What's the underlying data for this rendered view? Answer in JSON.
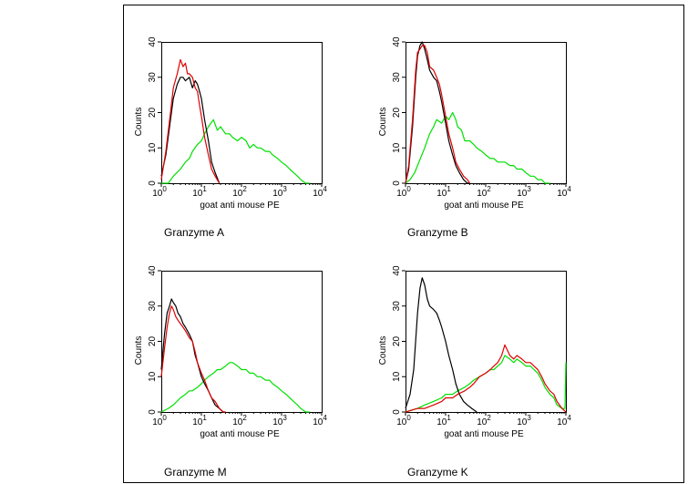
{
  "colors": {
    "black": "#000000",
    "red": "#e00000",
    "green": "#00e000"
  },
  "chart_data": [
    {
      "type": "line",
      "caption": "Granzyme A",
      "xlabel": "goat anti mouse PE",
      "ylabel": "Counts",
      "xscale": "log",
      "xlim": [
        1,
        10000
      ],
      "ylim": [
        0,
        40
      ],
      "xticks": [
        {
          "b": "10",
          "e": "0"
        },
        {
          "b": "10",
          "e": "1"
        },
        {
          "b": "10",
          "e": "2"
        },
        {
          "b": "10",
          "e": "3"
        },
        {
          "b": "10",
          "e": "4"
        }
      ],
      "yticks": [
        "0",
        "10",
        "20",
        "30",
        "40"
      ],
      "series": [
        {
          "color": "black",
          "x": [
            1,
            1.3,
            1.7,
            2,
            2.5,
            3,
            3.5,
            4,
            5,
            6,
            7,
            8,
            9,
            10,
            12,
            15,
            18,
            22,
            28
          ],
          "y": [
            2,
            8,
            18,
            24,
            28,
            30,
            30,
            29,
            30,
            27,
            29,
            28,
            26,
            24,
            18,
            12,
            6,
            3,
            0
          ]
        },
        {
          "color": "red",
          "x": [
            1,
            1.3,
            1.7,
            2,
            2.5,
            3,
            3.5,
            4,
            4.5,
            5,
            6,
            7,
            8,
            9,
            10,
            12,
            15,
            18,
            22,
            28
          ],
          "y": [
            1,
            9,
            20,
            27,
            31,
            35,
            33,
            34,
            31,
            31,
            30,
            27,
            26,
            22,
            19,
            13,
            8,
            4,
            2,
            0
          ]
        },
        {
          "color": "green",
          "x": [
            1,
            1.5,
            2,
            3,
            4,
            5,
            6,
            8,
            10,
            12,
            15,
            20,
            25,
            30,
            40,
            50,
            60,
            80,
            100,
            130,
            160,
            200,
            250,
            300,
            400,
            500,
            600,
            800,
            1000,
            1300,
            1600,
            2000,
            2500,
            3000,
            4000,
            5000
          ],
          "y": [
            0,
            0,
            2,
            4,
            6,
            7,
            9,
            11,
            12,
            14,
            16,
            18,
            15,
            16,
            14,
            14,
            13,
            12,
            13,
            12,
            10,
            11,
            10,
            10,
            9,
            9,
            8,
            7,
            6,
            5,
            4,
            3,
            2,
            1,
            0,
            0
          ]
        }
      ]
    },
    {
      "type": "line",
      "caption": "Granzyme B",
      "xlabel": "goat anti mouse PE",
      "ylabel": "Counts",
      "xscale": "log",
      "xlim": [
        1,
        10000
      ],
      "ylim": [
        0,
        40
      ],
      "xticks": [
        {
          "b": "10",
          "e": "0"
        },
        {
          "b": "10",
          "e": "1"
        },
        {
          "b": "10",
          "e": "2"
        },
        {
          "b": "10",
          "e": "3"
        },
        {
          "b": "10",
          "e": "4"
        }
      ],
      "yticks": [
        "0",
        "10",
        "20",
        "30",
        "40"
      ],
      "series": [
        {
          "color": "black",
          "x": [
            1,
            1.2,
            1.5,
            1.8,
            2,
            2.3,
            2.6,
            3,
            3.5,
            4,
            5,
            6,
            7,
            8,
            10,
            12,
            15,
            18,
            22,
            28,
            35,
            40
          ],
          "y": [
            0,
            4,
            16,
            30,
            36,
            39,
            40,
            38,
            35,
            32,
            30,
            29,
            26,
            23,
            17,
            12,
            8,
            5,
            3,
            1,
            0,
            0
          ]
        },
        {
          "color": "red",
          "x": [
            1,
            1.2,
            1.5,
            1.8,
            2,
            2.3,
            2.6,
            3,
            3.5,
            4,
            5,
            6,
            7,
            8,
            10,
            12,
            15,
            18,
            22,
            28,
            35,
            40
          ],
          "y": [
            0,
            5,
            18,
            32,
            37,
            38,
            39,
            39,
            37,
            33,
            32,
            30,
            28,
            25,
            19,
            14,
            10,
            6,
            4,
            2,
            1,
            0
          ]
        },
        {
          "color": "green",
          "x": [
            1,
            1.3,
            1.7,
            2,
            3,
            4,
            5,
            6,
            8,
            10,
            12,
            15,
            18,
            20,
            25,
            30,
            40,
            50,
            60,
            80,
            100,
            130,
            160,
            200,
            300,
            400,
            500,
            600,
            800,
            1000,
            1300,
            1600,
            2000,
            2500,
            3000,
            4000
          ],
          "y": [
            0,
            1,
            3,
            5,
            10,
            14,
            16,
            18,
            17,
            19,
            18,
            20,
            18,
            16,
            15,
            12,
            12,
            11,
            10,
            9,
            8,
            7,
            7,
            6,
            6,
            5,
            5,
            4,
            4,
            3,
            2,
            2,
            1,
            1,
            0,
            0
          ]
        }
      ]
    },
    {
      "type": "line",
      "caption": "Granzyme M",
      "xlabel": "goat anti mouse PE",
      "ylabel": "Counts",
      "xscale": "log",
      "xlim": [
        1,
        10000
      ],
      "ylim": [
        0,
        40
      ],
      "xticks": [
        {
          "b": "10",
          "e": "0"
        },
        {
          "b": "10",
          "e": "1"
        },
        {
          "b": "10",
          "e": "2"
        },
        {
          "b": "10",
          "e": "3"
        },
        {
          "b": "10",
          "e": "4"
        }
      ],
      "yticks": [
        "0",
        "10",
        "20",
        "30",
        "40"
      ],
      "series": [
        {
          "color": "black",
          "x": [
            1,
            1.2,
            1.4,
            1.6,
            1.8,
            2,
            2.3,
            2.6,
            3,
            3.5,
            4,
            5,
            6,
            7,
            8,
            10,
            12,
            15,
            18,
            22,
            28,
            35,
            40
          ],
          "y": [
            12,
            22,
            28,
            30,
            32,
            31,
            30,
            28,
            27,
            25,
            24,
            22,
            20,
            16,
            14,
            10,
            8,
            6,
            4,
            2,
            1,
            0,
            0
          ]
        },
        {
          "color": "red",
          "x": [
            1,
            1.2,
            1.4,
            1.6,
            1.8,
            2,
            2.3,
            2.6,
            3,
            3.5,
            4,
            5,
            6,
            7,
            8,
            10,
            12,
            15,
            18,
            22,
            28,
            35,
            40
          ],
          "y": [
            10,
            18,
            24,
            28,
            30,
            29,
            27,
            26,
            25,
            24,
            23,
            21,
            20,
            17,
            14,
            11,
            9,
            6,
            4,
            3,
            1,
            0,
            0
          ]
        },
        {
          "color": "green",
          "x": [
            1,
            1.5,
            2,
            3,
            4,
            5,
            6,
            8,
            10,
            12,
            15,
            20,
            25,
            30,
            40,
            50,
            60,
            80,
            100,
            130,
            160,
            200,
            250,
            300,
            400,
            500,
            600,
            800,
            1000,
            1300,
            1600,
            2000,
            2500,
            3000,
            4000,
            5000
          ],
          "y": [
            0,
            1,
            2,
            4,
            5,
            6,
            6,
            7,
            8,
            9,
            10,
            11,
            12,
            12,
            13,
            14,
            14,
            13,
            12,
            12,
            11,
            11,
            10,
            10,
            9,
            9,
            8,
            7,
            6,
            5,
            4,
            3,
            2,
            1,
            0,
            0
          ]
        }
      ]
    },
    {
      "type": "line",
      "caption": "Granzyme K",
      "xlabel": "goat anti mouse PE",
      "ylabel": "Counts",
      "xscale": "log",
      "xlim": [
        1,
        10000
      ],
      "ylim": [
        0,
        40
      ],
      "xticks": [
        {
          "b": "10",
          "e": "0"
        },
        {
          "b": "10",
          "e": "1"
        },
        {
          "b": "10",
          "e": "2"
        },
        {
          "b": "10",
          "e": "3"
        },
        {
          "b": "10",
          "e": "4"
        }
      ],
      "yticks": [
        "0",
        "10",
        "20",
        "30",
        "40"
      ],
      "series": [
        {
          "color": "black",
          "x": [
            1,
            1.3,
            1.6,
            2,
            2.3,
            2.6,
            3,
            3.5,
            4,
            5,
            6,
            7,
            8,
            10,
            12,
            15,
            18,
            22,
            28,
            35,
            45,
            60
          ],
          "y": [
            1,
            5,
            12,
            28,
            35,
            38,
            36,
            32,
            30,
            29,
            28,
            26,
            24,
            20,
            16,
            12,
            8,
            5,
            3,
            2,
            1,
            0
          ]
        },
        {
          "color": "red",
          "x": [
            1,
            2,
            3,
            5,
            8,
            10,
            15,
            20,
            30,
            40,
            50,
            70,
            100,
            130,
            160,
            200,
            250,
            300,
            400,
            500,
            600,
            800,
            1000,
            1300,
            1600,
            2000,
            2500,
            3000,
            4000,
            5000,
            6000,
            8000,
            10000
          ],
          "y": [
            0,
            1,
            1,
            2,
            3,
            4,
            4,
            5,
            6,
            7,
            8,
            10,
            11,
            12,
            13,
            14,
            16,
            19,
            16,
            15,
            16,
            15,
            14,
            14,
            13,
            12,
            10,
            8,
            6,
            5,
            3,
            1,
            0
          ]
        },
        {
          "color": "green",
          "x": [
            1,
            2,
            3,
            5,
            8,
            10,
            15,
            20,
            30,
            40,
            50,
            70,
            100,
            130,
            160,
            200,
            250,
            300,
            400,
            500,
            600,
            800,
            1000,
            1300,
            1600,
            2000,
            2500,
            3000,
            4000,
            5000,
            6000,
            8000,
            9500,
            10000
          ],
          "y": [
            0,
            1,
            2,
            3,
            4,
            5,
            5,
            6,
            7,
            8,
            9,
            10,
            11,
            12,
            12,
            13,
            14,
            16,
            15,
            14,
            15,
            14,
            13,
            13,
            12,
            11,
            9,
            7,
            5,
            4,
            2,
            1,
            1,
            14
          ]
        }
      ]
    }
  ]
}
